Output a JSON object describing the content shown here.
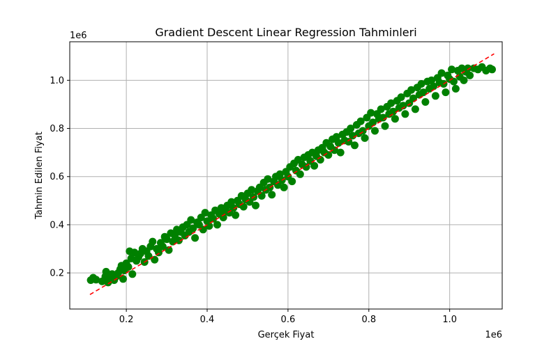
{
  "chart_data": {
    "type": "scatter",
    "title": "Gradient Descent Linear Regression Tahminleri",
    "xlabel": "Gerçek Fiyat",
    "ylabel": "Tahmin Edilen Fiyat",
    "x_offset_label": "1e6",
    "y_offset_label": "1e6",
    "xlim": [
      0.06,
      1.13
    ],
    "ylim": [
      0.05,
      1.16
    ],
    "xticks": [
      0.2,
      0.4,
      0.6,
      0.8,
      1.0
    ],
    "yticks": [
      0.2,
      0.4,
      0.6,
      0.8,
      1.0
    ],
    "xtick_labels": [
      "0.2",
      "0.4",
      "0.6",
      "0.8",
      "1.0"
    ],
    "ytick_labels": [
      "0.2",
      "0.4",
      "0.6",
      "0.8",
      "1.0"
    ],
    "grid": true,
    "scatter_color": "#008000",
    "reference_line": {
      "x": [
        0.11,
        1.11
      ],
      "y": [
        0.11,
        1.11
      ],
      "color": "#ff0000",
      "style": "dashed"
    },
    "points": [
      [
        0.112,
        0.17
      ],
      [
        0.118,
        0.18
      ],
      [
        0.125,
        0.172
      ],
      [
        0.14,
        0.165
      ],
      [
        0.148,
        0.185
      ],
      [
        0.15,
        0.205
      ],
      [
        0.155,
        0.16
      ],
      [
        0.16,
        0.178
      ],
      [
        0.165,
        0.195
      ],
      [
        0.17,
        0.17
      ],
      [
        0.175,
        0.185
      ],
      [
        0.18,
        0.2
      ],
      [
        0.185,
        0.215
      ],
      [
        0.188,
        0.23
      ],
      [
        0.192,
        0.175
      ],
      [
        0.195,
        0.21
      ],
      [
        0.2,
        0.24
      ],
      [
        0.205,
        0.225
      ],
      [
        0.208,
        0.29
      ],
      [
        0.212,
        0.26
      ],
      [
        0.215,
        0.195
      ],
      [
        0.22,
        0.285
      ],
      [
        0.225,
        0.25
      ],
      [
        0.23,
        0.265
      ],
      [
        0.235,
        0.28
      ],
      [
        0.24,
        0.3
      ],
      [
        0.245,
        0.245
      ],
      [
        0.25,
        0.29
      ],
      [
        0.255,
        0.27
      ],
      [
        0.26,
        0.31
      ],
      [
        0.265,
        0.33
      ],
      [
        0.27,
        0.255
      ],
      [
        0.275,
        0.3
      ],
      [
        0.28,
        0.285
      ],
      [
        0.285,
        0.325
      ],
      [
        0.29,
        0.31
      ],
      [
        0.295,
        0.35
      ],
      [
        0.3,
        0.34
      ],
      [
        0.305,
        0.295
      ],
      [
        0.31,
        0.365
      ],
      [
        0.315,
        0.33
      ],
      [
        0.32,
        0.355
      ],
      [
        0.325,
        0.38
      ],
      [
        0.33,
        0.335
      ],
      [
        0.335,
        0.37
      ],
      [
        0.34,
        0.39
      ],
      [
        0.345,
        0.355
      ],
      [
        0.35,
        0.4
      ],
      [
        0.355,
        0.37
      ],
      [
        0.36,
        0.42
      ],
      [
        0.365,
        0.385
      ],
      [
        0.37,
        0.345
      ],
      [
        0.375,
        0.41
      ],
      [
        0.38,
        0.4
      ],
      [
        0.385,
        0.43
      ],
      [
        0.39,
        0.38
      ],
      [
        0.395,
        0.45
      ],
      [
        0.4,
        0.415
      ],
      [
        0.405,
        0.395
      ],
      [
        0.41,
        0.44
      ],
      [
        0.415,
        0.425
      ],
      [
        0.42,
        0.46
      ],
      [
        0.425,
        0.4
      ],
      [
        0.43,
        0.445
      ],
      [
        0.435,
        0.47
      ],
      [
        0.44,
        0.43
      ],
      [
        0.445,
        0.455
      ],
      [
        0.45,
        0.48
      ],
      [
        0.455,
        0.45
      ],
      [
        0.46,
        0.495
      ],
      [
        0.465,
        0.47
      ],
      [
        0.47,
        0.44
      ],
      [
        0.475,
        0.5
      ],
      [
        0.48,
        0.485
      ],
      [
        0.485,
        0.52
      ],
      [
        0.49,
        0.475
      ],
      [
        0.495,
        0.505
      ],
      [
        0.5,
        0.53
      ],
      [
        0.505,
        0.495
      ],
      [
        0.51,
        0.545
      ],
      [
        0.515,
        0.515
      ],
      [
        0.52,
        0.48
      ],
      [
        0.525,
        0.54
      ],
      [
        0.53,
        0.555
      ],
      [
        0.535,
        0.52
      ],
      [
        0.54,
        0.575
      ],
      [
        0.545,
        0.545
      ],
      [
        0.55,
        0.59
      ],
      [
        0.555,
        0.555
      ],
      [
        0.56,
        0.525
      ],
      [
        0.565,
        0.58
      ],
      [
        0.57,
        0.6
      ],
      [
        0.575,
        0.565
      ],
      [
        0.58,
        0.61
      ],
      [
        0.585,
        0.585
      ],
      [
        0.59,
        0.555
      ],
      [
        0.595,
        0.62
      ],
      [
        0.6,
        0.6
      ],
      [
        0.605,
        0.64
      ],
      [
        0.61,
        0.58
      ],
      [
        0.615,
        0.655
      ],
      [
        0.62,
        0.625
      ],
      [
        0.625,
        0.67
      ],
      [
        0.63,
        0.61
      ],
      [
        0.635,
        0.65
      ],
      [
        0.64,
        0.68
      ],
      [
        0.645,
        0.64
      ],
      [
        0.65,
        0.69
      ],
      [
        0.655,
        0.665
      ],
      [
        0.66,
        0.7
      ],
      [
        0.665,
        0.645
      ],
      [
        0.67,
        0.685
      ],
      [
        0.675,
        0.71
      ],
      [
        0.68,
        0.67
      ],
      [
        0.685,
        0.72
      ],
      [
        0.69,
        0.7
      ],
      [
        0.695,
        0.74
      ],
      [
        0.7,
        0.69
      ],
      [
        0.705,
        0.725
      ],
      [
        0.71,
        0.755
      ],
      [
        0.715,
        0.71
      ],
      [
        0.72,
        0.765
      ],
      [
        0.725,
        0.74
      ],
      [
        0.73,
        0.7
      ],
      [
        0.735,
        0.775
      ],
      [
        0.74,
        0.75
      ],
      [
        0.745,
        0.785
      ],
      [
        0.75,
        0.745
      ],
      [
        0.755,
        0.8
      ],
      [
        0.76,
        0.77
      ],
      [
        0.765,
        0.73
      ],
      [
        0.77,
        0.815
      ],
      [
        0.775,
        0.78
      ],
      [
        0.78,
        0.83
      ],
      [
        0.785,
        0.79
      ],
      [
        0.79,
        0.76
      ],
      [
        0.795,
        0.845
      ],
      [
        0.8,
        0.81
      ],
      [
        0.805,
        0.865
      ],
      [
        0.81,
        0.825
      ],
      [
        0.815,
        0.79
      ],
      [
        0.82,
        0.86
      ],
      [
        0.825,
        0.84
      ],
      [
        0.83,
        0.88
      ],
      [
        0.835,
        0.845
      ],
      [
        0.84,
        0.81
      ],
      [
        0.845,
        0.89
      ],
      [
        0.85,
        0.86
      ],
      [
        0.855,
        0.905
      ],
      [
        0.86,
        0.87
      ],
      [
        0.865,
        0.84
      ],
      [
        0.87,
        0.915
      ],
      [
        0.875,
        0.885
      ],
      [
        0.88,
        0.93
      ],
      [
        0.885,
        0.895
      ],
      [
        0.89,
        0.86
      ],
      [
        0.895,
        0.945
      ],
      [
        0.9,
        0.905
      ],
      [
        0.905,
        0.96
      ],
      [
        0.91,
        0.925
      ],
      [
        0.915,
        0.88
      ],
      [
        0.92,
        0.97
      ],
      [
        0.925,
        0.94
      ],
      [
        0.93,
        0.985
      ],
      [
        0.935,
        0.95
      ],
      [
        0.94,
        0.91
      ],
      [
        0.945,
        0.995
      ],
      [
        0.95,
        0.965
      ],
      [
        0.955,
        1.0
      ],
      [
        0.96,
        0.975
      ],
      [
        0.965,
        0.935
      ],
      [
        0.97,
        1.01
      ],
      [
        0.975,
        0.99
      ],
      [
        0.98,
        1.03
      ],
      [
        0.985,
        0.985
      ],
      [
        0.99,
        0.95
      ],
      [
        0.995,
        1.02
      ],
      [
        1.0,
        1.005
      ],
      [
        1.005,
        1.045
      ],
      [
        1.01,
        0.995
      ],
      [
        1.015,
        0.965
      ],
      [
        1.02,
        1.04
      ],
      [
        1.025,
        1.015
      ],
      [
        1.03,
        1.05
      ],
      [
        1.035,
        1.0
      ],
      [
        1.04,
        1.035
      ],
      [
        1.045,
        1.05
      ],
      [
        1.05,
        1.02
      ],
      [
        1.06,
        1.05
      ],
      [
        1.07,
        1.045
      ],
      [
        1.08,
        1.055
      ],
      [
        1.09,
        1.04
      ],
      [
        1.1,
        1.05
      ],
      [
        1.105,
        1.045
      ]
    ]
  }
}
